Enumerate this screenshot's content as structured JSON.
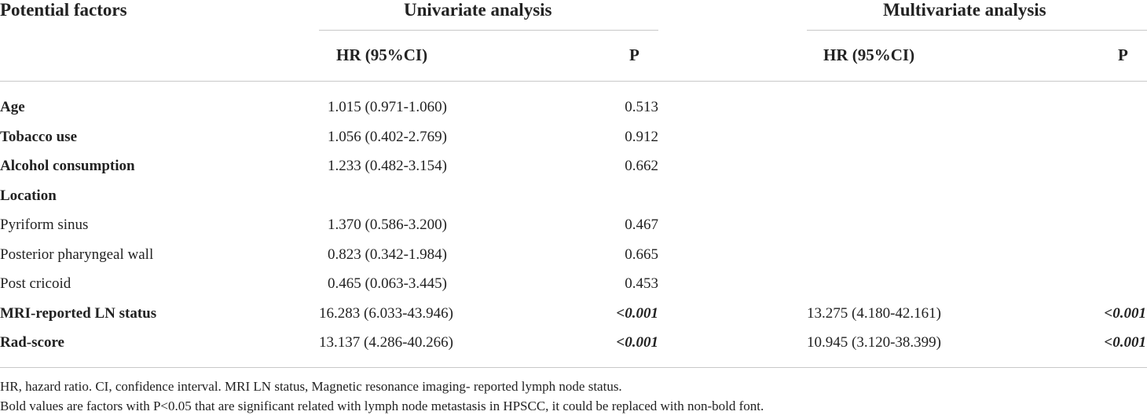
{
  "table": {
    "headers": {
      "factors": "Potential factors",
      "univariate": "Univariate analysis",
      "multivariate": "Multivariate analysis",
      "uni_hr": "HR (95%CI)",
      "uni_p": "P",
      "multi_hr": "HR (95%CI)",
      "multi_p": "P"
    },
    "rows": [
      {
        "label": "Age",
        "bold": true,
        "uni_hr": "1.015 (0.971-1.060)",
        "uni_p": "0.513",
        "uni_sig": false,
        "multi_hr": "",
        "multi_p": "",
        "multi_sig": false
      },
      {
        "label": "Tobacco use",
        "bold": true,
        "uni_hr": "1.056 (0.402-2.769)",
        "uni_p": "0.912",
        "uni_sig": false,
        "multi_hr": "",
        "multi_p": "",
        "multi_sig": false
      },
      {
        "label": "Alcohol consumption",
        "bold": true,
        "uni_hr": "1.233 (0.482-3.154)",
        "uni_p": "0.662",
        "uni_sig": false,
        "multi_hr": "",
        "multi_p": "",
        "multi_sig": false
      },
      {
        "label": "Location",
        "bold": true,
        "uni_hr": "",
        "uni_p": "",
        "uni_sig": false,
        "multi_hr": "",
        "multi_p": "",
        "multi_sig": false
      },
      {
        "label": "Pyriform sinus",
        "bold": false,
        "uni_hr": "1.370 (0.586-3.200)",
        "uni_p": "0.467",
        "uni_sig": false,
        "multi_hr": "",
        "multi_p": "",
        "multi_sig": false
      },
      {
        "label": "Posterior pharyngeal wall",
        "bold": false,
        "uni_hr": "0.823 (0.342-1.984)",
        "uni_p": "0.665",
        "uni_sig": false,
        "multi_hr": "",
        "multi_p": "",
        "multi_sig": false
      },
      {
        "label": "Post cricoid",
        "bold": false,
        "uni_hr": "0.465 (0.063-3.445)",
        "uni_p": "0.453",
        "uni_sig": false,
        "multi_hr": "",
        "multi_p": "",
        "multi_sig": false
      },
      {
        "label": "MRI-reported LN status",
        "bold": true,
        "uni_hr": "16.283 (6.033-43.946)",
        "uni_p": "<0.001",
        "uni_sig": true,
        "multi_hr": "13.275 (4.180-42.161)",
        "multi_p": "<0.001",
        "multi_sig": true
      },
      {
        "label": "Rad-score",
        "bold": true,
        "uni_hr": "13.137 (4.286-40.266)",
        "uni_p": "<0.001",
        "uni_sig": true,
        "multi_hr": "10.945 (3.120-38.399)",
        "multi_p": "<0.001",
        "multi_sig": true
      }
    ]
  },
  "footnotes": {
    "line1": "HR, hazard ratio. CI, confidence interval. MRI LN status, Magnetic resonance imaging- reported lymph node status.",
    "line2": "Bold values are factors with P<0.05 that are significant related with lymph node metastasis in HPSCC, it could be replaced with non-bold font."
  }
}
